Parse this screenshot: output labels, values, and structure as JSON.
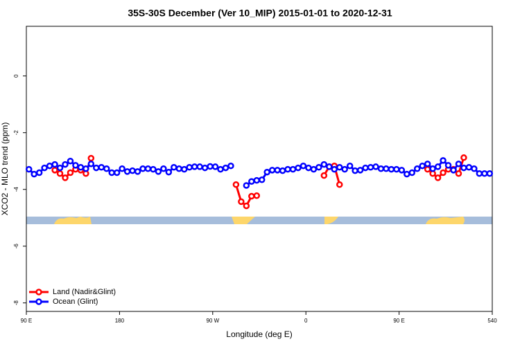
{
  "chart_data": {
    "type": "line",
    "title": "35S-30S December (Ver 10_MIP)   2015-01-01 to 2020-12-31",
    "xlabel": "Longitude (deg E)",
    "ylabel": "XCO2 - MLO trend (ppm)",
    "xlim": [
      90,
      540
    ],
    "ylim": [
      -8.3,
      1.75
    ],
    "xticks": [
      {
        "value": 90,
        "label": "90 E"
      },
      180,
      {
        "value": 270,
        "label": "90 W"
      },
      {
        "value": 360,
        "label": "0"
      },
      {
        "value": 450,
        "label": "90 E"
      },
      540
    ],
    "yticks": [
      0,
      -2,
      -4,
      -6,
      -8
    ],
    "legend": "bottom-left",
    "series": [
      {
        "name": "Land (Nadir&Glint)",
        "color": "#ff0000",
        "x": [
          117.5,
          122.5,
          127.5,
          132.5,
          137.5,
          142.5,
          147.5,
          152.5,
          157.5,
          292.5,
          297.5,
          302.5,
          307.5,
          312.5,
          317.5,
          377.5,
          382.5,
          387.5,
          392.5,
          397.5,
          477.5,
          482.5,
          487.5,
          492.5,
          497.5,
          502.5,
          507.5,
          512.5
        ],
        "values": [
          -3.32,
          -3.44,
          -3.59,
          -3.41,
          -3.29,
          -3.32,
          -3.44,
          -2.9,
          null,
          -3.83,
          -4.43,
          -4.58,
          -4.24,
          -4.22,
          null,
          -3.51,
          -3.2,
          -3.17,
          -3.83,
          null,
          -3.29,
          -3.44,
          -3.59,
          -3.41,
          -3.29,
          -3.29,
          -3.44,
          -2.88
        ]
      },
      {
        "name": "Ocean (Glint)",
        "color": "#0000ff",
        "x": [
          92.5,
          97.5,
          102.5,
          107.5,
          112.5,
          117.5,
          122.5,
          127.5,
          132.5,
          137.5,
          142.5,
          147.5,
          152.5,
          157.5,
          162.5,
          167.5,
          172.5,
          177.5,
          182.5,
          187.5,
          192.5,
          197.5,
          202.5,
          207.5,
          212.5,
          217.5,
          222.5,
          227.5,
          232.5,
          237.5,
          242.5,
          247.5,
          252.5,
          257.5,
          262.5,
          267.5,
          272.5,
          277.5,
          282.5,
          287.5,
          292.5,
          297.5,
          302.5,
          307.5,
          312.5,
          317.5,
          322.5,
          327.5,
          332.5,
          337.5,
          342.5,
          347.5,
          352.5,
          357.5,
          362.5,
          367.5,
          372.5,
          377.5,
          382.5,
          387.5,
          392.5,
          397.5,
          402.5,
          407.5,
          412.5,
          417.5,
          422.5,
          427.5,
          432.5,
          437.5,
          442.5,
          447.5,
          452.5,
          457.5,
          462.5,
          467.5,
          472.5,
          477.5,
          482.5,
          487.5,
          492.5,
          497.5,
          502.5,
          507.5,
          512.5,
          517.5,
          522.5,
          527.5,
          532.5,
          537.5
        ],
        "values": [
          -3.29,
          -3.46,
          -3.41,
          -3.24,
          -3.17,
          -3.12,
          -3.24,
          -3.12,
          -3.0,
          -3.15,
          -3.22,
          -3.27,
          -3.1,
          -3.24,
          -3.22,
          -3.27,
          -3.41,
          -3.41,
          -3.27,
          -3.37,
          -3.34,
          -3.37,
          -3.27,
          -3.27,
          -3.29,
          -3.37,
          -3.27,
          -3.39,
          -3.22,
          -3.27,
          -3.29,
          -3.22,
          -3.2,
          -3.2,
          -3.24,
          -3.19,
          -3.2,
          -3.29,
          -3.24,
          -3.17,
          null,
          null,
          -3.86,
          -3.72,
          -3.68,
          -3.66,
          -3.39,
          -3.32,
          -3.32,
          -3.34,
          -3.29,
          -3.29,
          -3.24,
          -3.17,
          -3.24,
          -3.29,
          -3.22,
          -3.12,
          -3.2,
          -3.29,
          -3.22,
          -3.29,
          -3.17,
          -3.34,
          -3.32,
          -3.24,
          -3.22,
          -3.2,
          -3.27,
          -3.27,
          -3.29,
          -3.29,
          -3.32,
          -3.46,
          -3.41,
          -3.27,
          -3.17,
          -3.1,
          -3.27,
          -3.2,
          -2.98,
          -3.15,
          -3.32,
          -3.1,
          -3.24,
          -3.22,
          -3.27,
          -3.44,
          -3.44,
          -3.44
        ]
      }
    ]
  }
}
